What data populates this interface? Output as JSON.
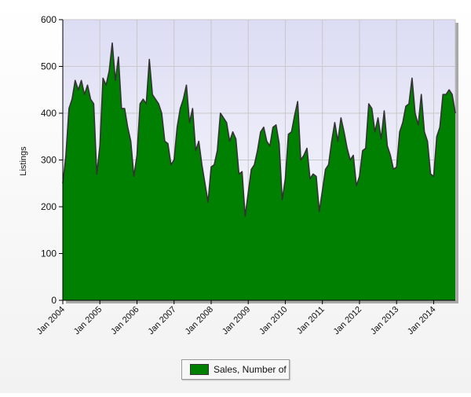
{
  "chart_data": {
    "type": "area",
    "title": "",
    "xlabel": "",
    "ylabel": "Listings",
    "ylim": [
      0,
      600
    ],
    "yticks": [
      0,
      100,
      200,
      300,
      400,
      500,
      600
    ],
    "x_tick_labels": [
      "Jan 2004",
      "Jan 2005",
      "Jan 2006",
      "Jan 2007",
      "Jan 2008",
      "Jan 2009",
      "Jan 2010",
      "Jan 2011",
      "Jan 2012",
      "Jan 2013",
      "Jan 2014"
    ],
    "x_start": "2004-01",
    "x_end": "2014-08",
    "grid": true,
    "legend_position": "bottom",
    "colors": {
      "fill": "#008000",
      "line": "#333333",
      "plot_bg": "#e8e8f8",
      "grid": "#c8c8c8"
    },
    "series": [
      {
        "name": "Sales, Number of",
        "x": [
          "2004-01",
          "2004-02",
          "2004-03",
          "2004-04",
          "2004-05",
          "2004-06",
          "2004-07",
          "2004-08",
          "2004-09",
          "2004-10",
          "2004-11",
          "2004-12",
          "2005-01",
          "2005-02",
          "2005-03",
          "2005-04",
          "2005-05",
          "2005-06",
          "2005-07",
          "2005-08",
          "2005-09",
          "2005-10",
          "2005-11",
          "2005-12",
          "2006-01",
          "2006-02",
          "2006-03",
          "2006-04",
          "2006-05",
          "2006-06",
          "2006-07",
          "2006-08",
          "2006-09",
          "2006-10",
          "2006-11",
          "2006-12",
          "2007-01",
          "2007-02",
          "2007-03",
          "2007-04",
          "2007-05",
          "2007-06",
          "2007-07",
          "2007-08",
          "2007-09",
          "2007-10",
          "2007-11",
          "2007-12",
          "2008-01",
          "2008-02",
          "2008-03",
          "2008-04",
          "2008-05",
          "2008-06",
          "2008-07",
          "2008-08",
          "2008-09",
          "2008-10",
          "2008-11",
          "2008-12",
          "2009-01",
          "2009-02",
          "2009-03",
          "2009-04",
          "2009-05",
          "2009-06",
          "2009-07",
          "2009-08",
          "2009-09",
          "2009-10",
          "2009-11",
          "2009-12",
          "2010-01",
          "2010-02",
          "2010-03",
          "2010-04",
          "2010-05",
          "2010-06",
          "2010-07",
          "2010-08",
          "2010-09",
          "2010-10",
          "2010-11",
          "2010-12",
          "2011-01",
          "2011-02",
          "2011-03",
          "2011-04",
          "2011-05",
          "2011-06",
          "2011-07",
          "2011-08",
          "2011-09",
          "2011-10",
          "2011-11",
          "2011-12",
          "2012-01",
          "2012-02",
          "2012-03",
          "2012-04",
          "2012-05",
          "2012-06",
          "2012-07",
          "2012-08",
          "2012-09",
          "2012-10",
          "2012-11",
          "2012-12",
          "2013-01",
          "2013-02",
          "2013-03",
          "2013-04",
          "2013-05",
          "2013-06",
          "2013-07",
          "2013-08",
          "2013-09",
          "2013-10",
          "2013-11",
          "2013-12",
          "2014-01",
          "2014-02",
          "2014-03",
          "2014-04",
          "2014-05",
          "2014-06",
          "2014-07",
          "2014-08"
        ],
        "values": [
          250,
          310,
          410,
          430,
          470,
          450,
          470,
          440,
          460,
          430,
          420,
          270,
          330,
          475,
          460,
          490,
          550,
          470,
          520,
          410,
          410,
          370,
          340,
          265,
          310,
          420,
          430,
          420,
          515,
          440,
          430,
          420,
          400,
          340,
          335,
          290,
          300,
          370,
          410,
          430,
          460,
          380,
          410,
          320,
          340,
          290,
          250,
          210,
          285,
          290,
          320,
          400,
          390,
          380,
          340,
          360,
          345,
          270,
          275,
          180,
          230,
          280,
          290,
          320,
          360,
          370,
          340,
          330,
          370,
          375,
          335,
          215,
          260,
          355,
          360,
          395,
          425,
          300,
          310,
          325,
          260,
          270,
          265,
          190,
          235,
          280,
          290,
          340,
          380,
          340,
          390,
          360,
          325,
          300,
          310,
          245,
          265,
          320,
          325,
          420,
          410,
          360,
          390,
          345,
          405,
          330,
          310,
          280,
          285,
          360,
          380,
          415,
          420,
          475,
          400,
          375,
          440,
          360,
          340,
          270,
          265,
          350,
          370,
          440,
          440,
          450,
          440,
          400
        ]
      }
    ]
  },
  "legend": {
    "label": "Sales, Number of"
  }
}
